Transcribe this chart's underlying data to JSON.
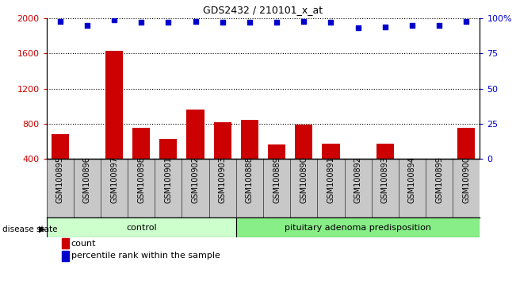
{
  "title": "GDS2432 / 210101_x_at",
  "samples": [
    "GSM100895",
    "GSM100896",
    "GSM100897",
    "GSM100898",
    "GSM100901",
    "GSM100902",
    "GSM100903",
    "GSM100888",
    "GSM100889",
    "GSM100890",
    "GSM100891",
    "GSM100892",
    "GSM100893",
    "GSM100894",
    "GSM100899",
    "GSM100900"
  ],
  "bar_values": [
    680,
    390,
    1630,
    750,
    630,
    960,
    820,
    840,
    560,
    790,
    570,
    390,
    570,
    380,
    380,
    750
  ],
  "percentile_values": [
    98,
    95,
    99,
    97,
    97,
    98,
    97,
    97,
    97,
    98,
    97,
    93,
    94,
    95,
    95,
    98
  ],
  "bar_color": "#cc0000",
  "dot_color": "#0000cc",
  "ylim_left": [
    400,
    2000
  ],
  "ylim_right": [
    0,
    100
  ],
  "yticks_left": [
    400,
    800,
    1200,
    1600,
    2000
  ],
  "yticks_right": [
    0,
    25,
    50,
    75,
    100
  ],
  "ytick_labels_right": [
    "0",
    "25",
    "50",
    "75",
    "100%"
  ],
  "grid_values": [
    800,
    1200,
    1600
  ],
  "ctrl_count": 7,
  "dis_count": 9,
  "control_label": "control",
  "disease_label": "pituitary adenoma predisposition",
  "disease_state_label": "disease state",
  "legend_count_label": "count",
  "legend_pct_label": "percentile rank within the sample",
  "bg_color": "#ffffff",
  "xtick_bg_color": "#c8c8c8",
  "control_box_color": "#ccffcc",
  "disease_box_color": "#88ee88"
}
